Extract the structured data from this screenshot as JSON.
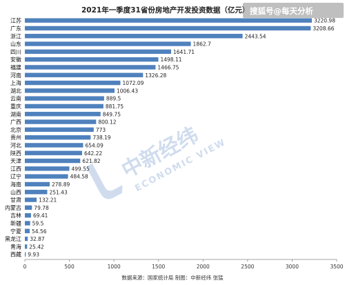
{
  "chart_data": {
    "type": "bar",
    "orientation": "horizontal",
    "title": "2021年一季度31省份房地产开发投资数据（亿元）",
    "categories": [
      "江苏",
      "广东",
      "浙江",
      "山东",
      "四川",
      "安徽",
      "福建",
      "河南",
      "上海",
      "湖北",
      "云南",
      "重庆",
      "湖南",
      "广西",
      "北京",
      "贵州",
      "河北",
      "陕西",
      "天津",
      "江西",
      "辽宁",
      "海南",
      "山西",
      "甘肃",
      "内蒙古",
      "吉林",
      "新疆",
      "宁夏",
      "黑龙江",
      "青海",
      "西藏"
    ],
    "values": [
      3220.98,
      3208.66,
      2443.54,
      1862.7,
      1641.71,
      1498.11,
      1466.75,
      1326.28,
      1072.09,
      1006.43,
      889.5,
      881.75,
      849.75,
      800.12,
      773,
      738.19,
      654.09,
      642.22,
      621.82,
      499.55,
      484.58,
      278.89,
      251.43,
      132.21,
      79.78,
      69.41,
      59.5,
      54.56,
      32.87,
      25.42,
      9.93
    ],
    "value_labels": [
      "3220.98",
      "3208.66",
      "2443.54",
      "1862.7",
      "1641.71",
      "1498.11",
      "1466.75",
      "1326.28",
      "1072.09",
      "1006.43",
      "889.5",
      "881.75",
      "849.75",
      "800.12",
      "773",
      "738.19",
      "654.09",
      "642.22",
      "621.82",
      "499.55",
      "484.58",
      "278.89",
      "251.43",
      "132.21",
      "79.78",
      "69.41",
      "59.5",
      "54.56",
      "32.87",
      "25.42",
      "9.93"
    ],
    "xlim": [
      0,
      3500
    ],
    "xticks": [
      0,
      500,
      1000,
      1500,
      2000,
      2500,
      3000,
      3500
    ],
    "grid": false,
    "bar_color": "#4f81bd",
    "source": "数据来源：国家统计局  制图：中新经纬 张猛"
  },
  "watermarks": {
    "top_right": "搜狐号@每天分析",
    "center_main": "中新经纬",
    "center_sub": "ECONOMIC VIEW",
    "color": "#2b5fb0"
  }
}
